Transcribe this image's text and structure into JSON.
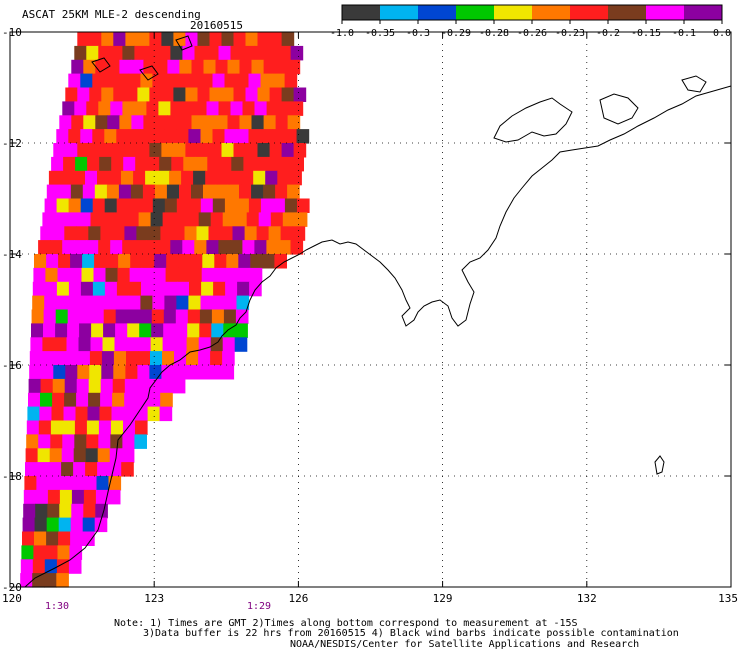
{
  "header": {
    "title": "ASCAT 25KM MLE-2 descending",
    "date": "20160515"
  },
  "colorbar": {
    "colors": [
      "#3a3a3a",
      "#00b4f0",
      "#0046d2",
      "#00c800",
      "#f0e600",
      "#ff7800",
      "#ff1e1e",
      "#7a3c1e",
      "#ff00ff",
      "#8c00a0"
    ],
    "labels": [
      "-1.0",
      "-0.35",
      "-0.3",
      "-0.29",
      "-0.28",
      "-0.26",
      "-0.23",
      "-0.2",
      "-0.15",
      "-0.1",
      "0.0"
    ]
  },
  "map": {
    "lat_labels": [
      "-10",
      "-12",
      "-14",
      "-16",
      "-18",
      "-20"
    ],
    "lon_labels": [
      "120",
      "123",
      "126",
      "129",
      "132",
      "135"
    ],
    "pass_times": [
      "1:30",
      "1:29"
    ],
    "pass_time_color": "#800080",
    "coastline_color": "#000000",
    "grid_color": "#000000"
  },
  "notes": {
    "line1": "Note: 1) Times are GMT 2)Times along bottom correspond to measurement at -15S",
    "line2": "3)Data buffer is 22 hrs from 20160515 4) Black wind barbs indicate possible contamination",
    "line3": "NOAA/NESDIS/Center for Satellite Applications and Research"
  }
}
